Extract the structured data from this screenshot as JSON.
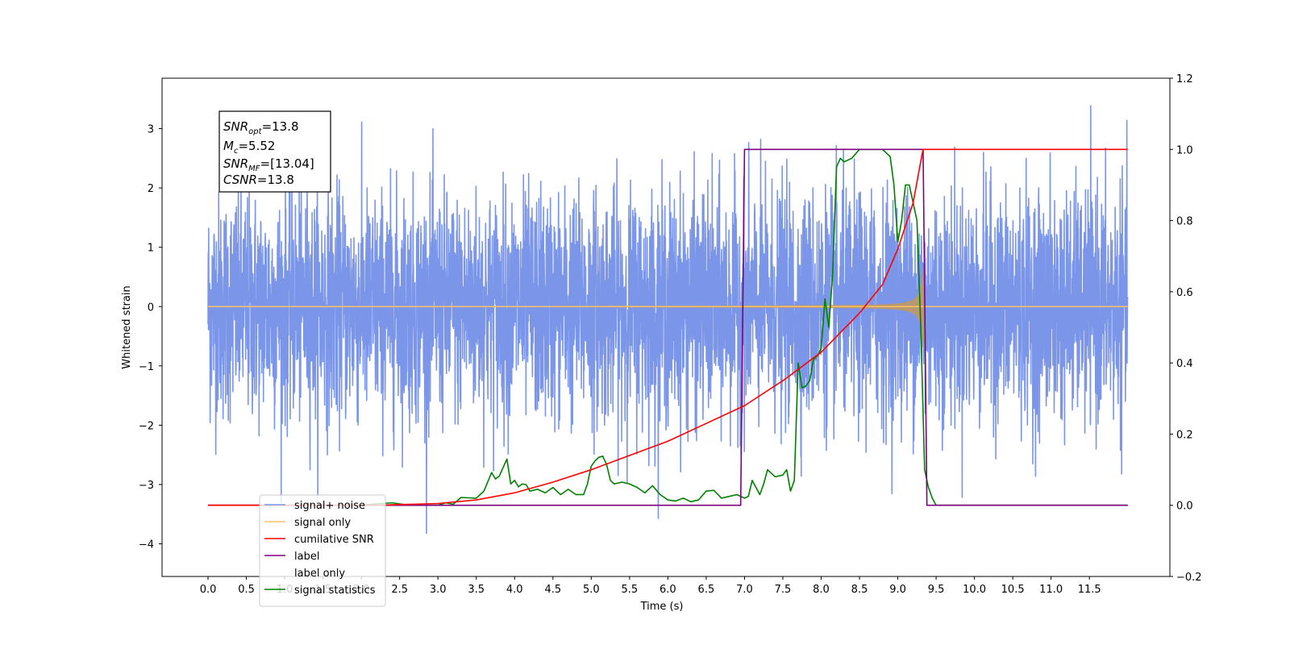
{
  "chart_data": {
    "type": "line",
    "xlabel": "Time (s)",
    "ylabel": "Whitened strain",
    "xlim": [
      -0.6,
      12.55
    ],
    "ylim": [
      -4.55,
      3.85
    ],
    "y2lim": [
      -0.2,
      1.2
    ],
    "x_ticks": [
      "0.0",
      "0.5",
      "1.0",
      "1.5",
      "2.0",
      "2.5",
      "3.0",
      "3.5",
      "4.0",
      "4.5",
      "5.0",
      "5.5",
      "6.0",
      "6.5",
      "7.0",
      "7.5",
      "8.0",
      "8.5",
      "9.0",
      "9.5",
      "10.0",
      "10.5",
      "11.0",
      "11.5"
    ],
    "x_tick_values": [
      0,
      0.5,
      1,
      1.5,
      2,
      2.5,
      3,
      3.5,
      4,
      4.5,
      5,
      5.5,
      6,
      6.5,
      7,
      7.5,
      8,
      8.5,
      9,
      9.5,
      10,
      10.5,
      11,
      11.5
    ],
    "y_ticks": [
      "3",
      "2",
      "1",
      "0",
      "−1",
      "−2",
      "−3",
      "−4"
    ],
    "y_tick_values": [
      3,
      2,
      1,
      0,
      -1,
      -2,
      -3,
      -4
    ],
    "y2_ticks": [
      "1.2",
      "1.0",
      "0.8",
      "0.6",
      "0.4",
      "0.2",
      "0.0",
      "−0.2"
    ],
    "y2_tick_values": [
      1.2,
      1.0,
      0.8,
      0.6,
      0.4,
      0.2,
      0.0,
      -0.2
    ],
    "grid": false,
    "legend_position": "lower-left",
    "series": [
      {
        "name": "signal+ noise",
        "axis": "left",
        "color": "#7b96e8",
        "noise_sigma": 0.95,
        "range": [
          0,
          12
        ]
      },
      {
        "name": "signal only",
        "axis": "left",
        "color": "#ffc066",
        "chirp_start": 0,
        "merger_time": 9.35,
        "peak_amplitude": 0.7
      },
      {
        "name": "cumilative SNR",
        "axis": "right",
        "color": "#ff0000",
        "x": [
          0,
          2.2,
          2.5,
          3.0,
          3.5,
          4.0,
          4.5,
          5.0,
          5.5,
          6.0,
          6.5,
          7.0,
          7.5,
          8.0,
          8.5,
          8.8,
          9.0,
          9.2,
          9.32,
          9.33,
          12
        ],
        "y": [
          0.0,
          0.0,
          0.002,
          0.005,
          0.015,
          0.035,
          0.065,
          0.1,
          0.14,
          0.18,
          0.23,
          0.28,
          0.35,
          0.43,
          0.54,
          0.62,
          0.72,
          0.85,
          0.99,
          1.0,
          1.0
        ]
      },
      {
        "name": "label",
        "axis": "right",
        "color": "#7d007d",
        "x": [
          0,
          6.95,
          7.0,
          9.33,
          9.38,
          12
        ],
        "y": [
          0,
          0,
          1,
          1,
          0,
          0
        ]
      },
      {
        "name": "label only",
        "axis": "right",
        "color": "#ffffff",
        "legend_only": true
      },
      {
        "name": "signal statistics",
        "axis": "right",
        "color": "#008000",
        "x": [
          0,
          2.0,
          2.2,
          2.4,
          2.6,
          2.8,
          3.0,
          3.1,
          3.2,
          3.3,
          3.5,
          3.6,
          3.7,
          3.75,
          3.8,
          3.9,
          3.95,
          4.0,
          4.05,
          4.1,
          4.15,
          4.2,
          4.3,
          4.4,
          4.5,
          4.6,
          4.7,
          4.8,
          4.9,
          4.95,
          5.0,
          5.05,
          5.1,
          5.15,
          5.2,
          5.25,
          5.3,
          5.4,
          5.5,
          5.6,
          5.7,
          5.8,
          5.9,
          6.0,
          6.1,
          6.2,
          6.3,
          6.4,
          6.5,
          6.6,
          6.7,
          6.8,
          6.9,
          7.0,
          7.05,
          7.1,
          7.2,
          7.25,
          7.3,
          7.4,
          7.5,
          7.55,
          7.6,
          7.65,
          7.7,
          7.75,
          7.8,
          7.85,
          7.9,
          7.95,
          8.0,
          8.05,
          8.1,
          8.15,
          8.2,
          8.25,
          8.3,
          8.4,
          8.5,
          8.6,
          8.7,
          8.8,
          8.9,
          8.95,
          9.0,
          9.05,
          9.1,
          9.15,
          9.2,
          9.25,
          9.3,
          9.35,
          9.4,
          9.45,
          9.5,
          12
        ],
        "y": [
          0,
          0,
          0.004,
          0.007,
          0.001,
          0.0,
          0.0,
          0.007,
          0.003,
          0.022,
          0.02,
          0.04,
          0.092,
          0.074,
          0.082,
          0.13,
          0.06,
          0.07,
          0.052,
          0.06,
          0.058,
          0.04,
          0.045,
          0.035,
          0.05,
          0.03,
          0.045,
          0.03,
          0.03,
          0.06,
          0.11,
          0.125,
          0.135,
          0.138,
          0.115,
          0.07,
          0.06,
          0.065,
          0.06,
          0.05,
          0.035,
          0.055,
          0.03,
          0.015,
          0.012,
          0.02,
          0.01,
          0.015,
          0.04,
          0.042,
          0.02,
          0.025,
          0.03,
          0.02,
          0.025,
          0.07,
          0.03,
          0.06,
          0.1,
          0.08,
          0.085,
          0.1,
          0.04,
          0.07,
          0.4,
          0.33,
          0.335,
          0.35,
          0.41,
          0.42,
          0.44,
          0.58,
          0.5,
          0.65,
          0.95,
          0.975,
          0.965,
          0.975,
          1.0,
          1.0,
          1.0,
          1.0,
          0.98,
          0.9,
          0.74,
          0.8,
          0.9,
          0.9,
          0.85,
          0.8,
          0.5,
          0.1,
          0.05,
          0.02,
          0.0,
          0.0
        ]
      }
    ]
  },
  "info_box": {
    "line1_sym": "SNR",
    "line1_sub": "opt",
    "line1_val": "=13.8",
    "line2_sym": "M",
    "line2_sub": "c",
    "line2_val": "=5.52",
    "line3_sym": "SNR",
    "line3_sub": "MF",
    "line3_val": "=[13.04]",
    "line4_sym": "CSNR",
    "line4_val": "=13.8"
  }
}
